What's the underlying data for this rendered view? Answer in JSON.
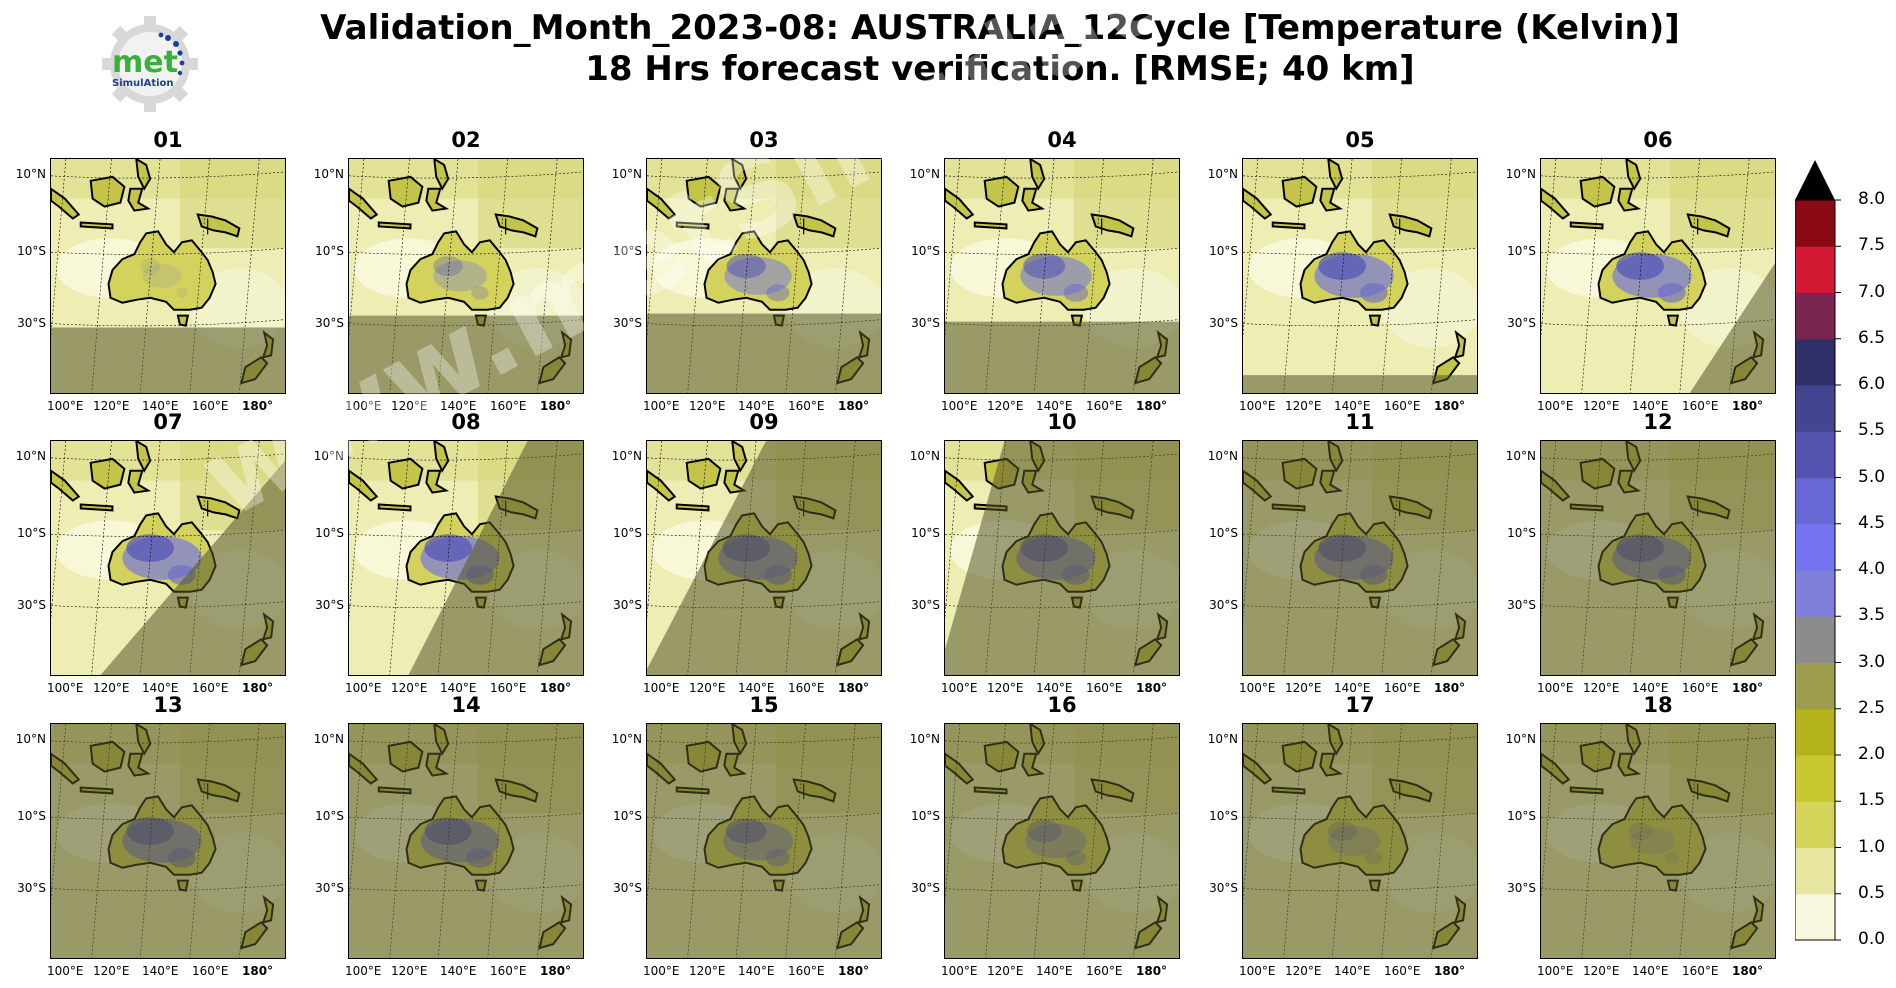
{
  "title": {
    "line1": "Validation_Month_2023-08: AUSTRALIA_12Cycle [Temperature (Kelvin)]",
    "line2": "18 Hrs forecast verification.  [RMSE; 40 km]"
  },
  "logo": {
    "text": "met",
    "subtext": "SimulAtion"
  },
  "watermark": "www.metSimulation.com",
  "lat_labels": [
    "10°N",
    "10°S",
    "30°S"
  ],
  "lon_labels": [
    "100°E",
    "120°E",
    "140°E",
    "160°E",
    "180°"
  ],
  "panels": [
    {
      "label": "01"
    },
    {
      "label": "02"
    },
    {
      "label": "03"
    },
    {
      "label": "04"
    },
    {
      "label": "05"
    },
    {
      "label": "06"
    },
    {
      "label": "07"
    },
    {
      "label": "08"
    },
    {
      "label": "09"
    },
    {
      "label": "10"
    },
    {
      "label": "11"
    },
    {
      "label": "12"
    },
    {
      "label": "13"
    },
    {
      "label": "14"
    },
    {
      "label": "15"
    },
    {
      "label": "16"
    },
    {
      "label": "17"
    },
    {
      "label": "18"
    }
  ],
  "colorbar": {
    "ticks": [
      "0.0",
      "0.5",
      "1.0",
      "1.5",
      "2.0",
      "2.5",
      "3.0",
      "3.5",
      "4.0",
      "4.5",
      "5.0",
      "5.5",
      "6.0",
      "6.5",
      "7.0",
      "7.5",
      "8.0"
    ],
    "colors": [
      "#f7f7e0",
      "#e6e6a0",
      "#d4d45a",
      "#c8c832",
      "#b4b41a",
      "#9e9e4e",
      "#8c8c8c",
      "#8080dc",
      "#7474f0",
      "#6868d4",
      "#5454b0",
      "#444490",
      "#303068",
      "#7a2450",
      "#d21832",
      "#8a0a14"
    ],
    "extend_color": "#000000"
  },
  "chart_data": {
    "type": "heatmap",
    "title": "Validation_Month_2023-08: AUSTRALIA_12Cycle [Temperature (Kelvin)] 18 Hrs forecast verification.  [RMSE; 40 km]",
    "panel_labels": [
      "01",
      "02",
      "03",
      "04",
      "05",
      "06",
      "07",
      "08",
      "09",
      "10",
      "11",
      "12",
      "13",
      "14",
      "15",
      "16",
      "17",
      "18"
    ],
    "colorbar_range": [
      0.0,
      8.0
    ],
    "colorbar_step": 0.5,
    "colorbar_extend": "max"
  }
}
